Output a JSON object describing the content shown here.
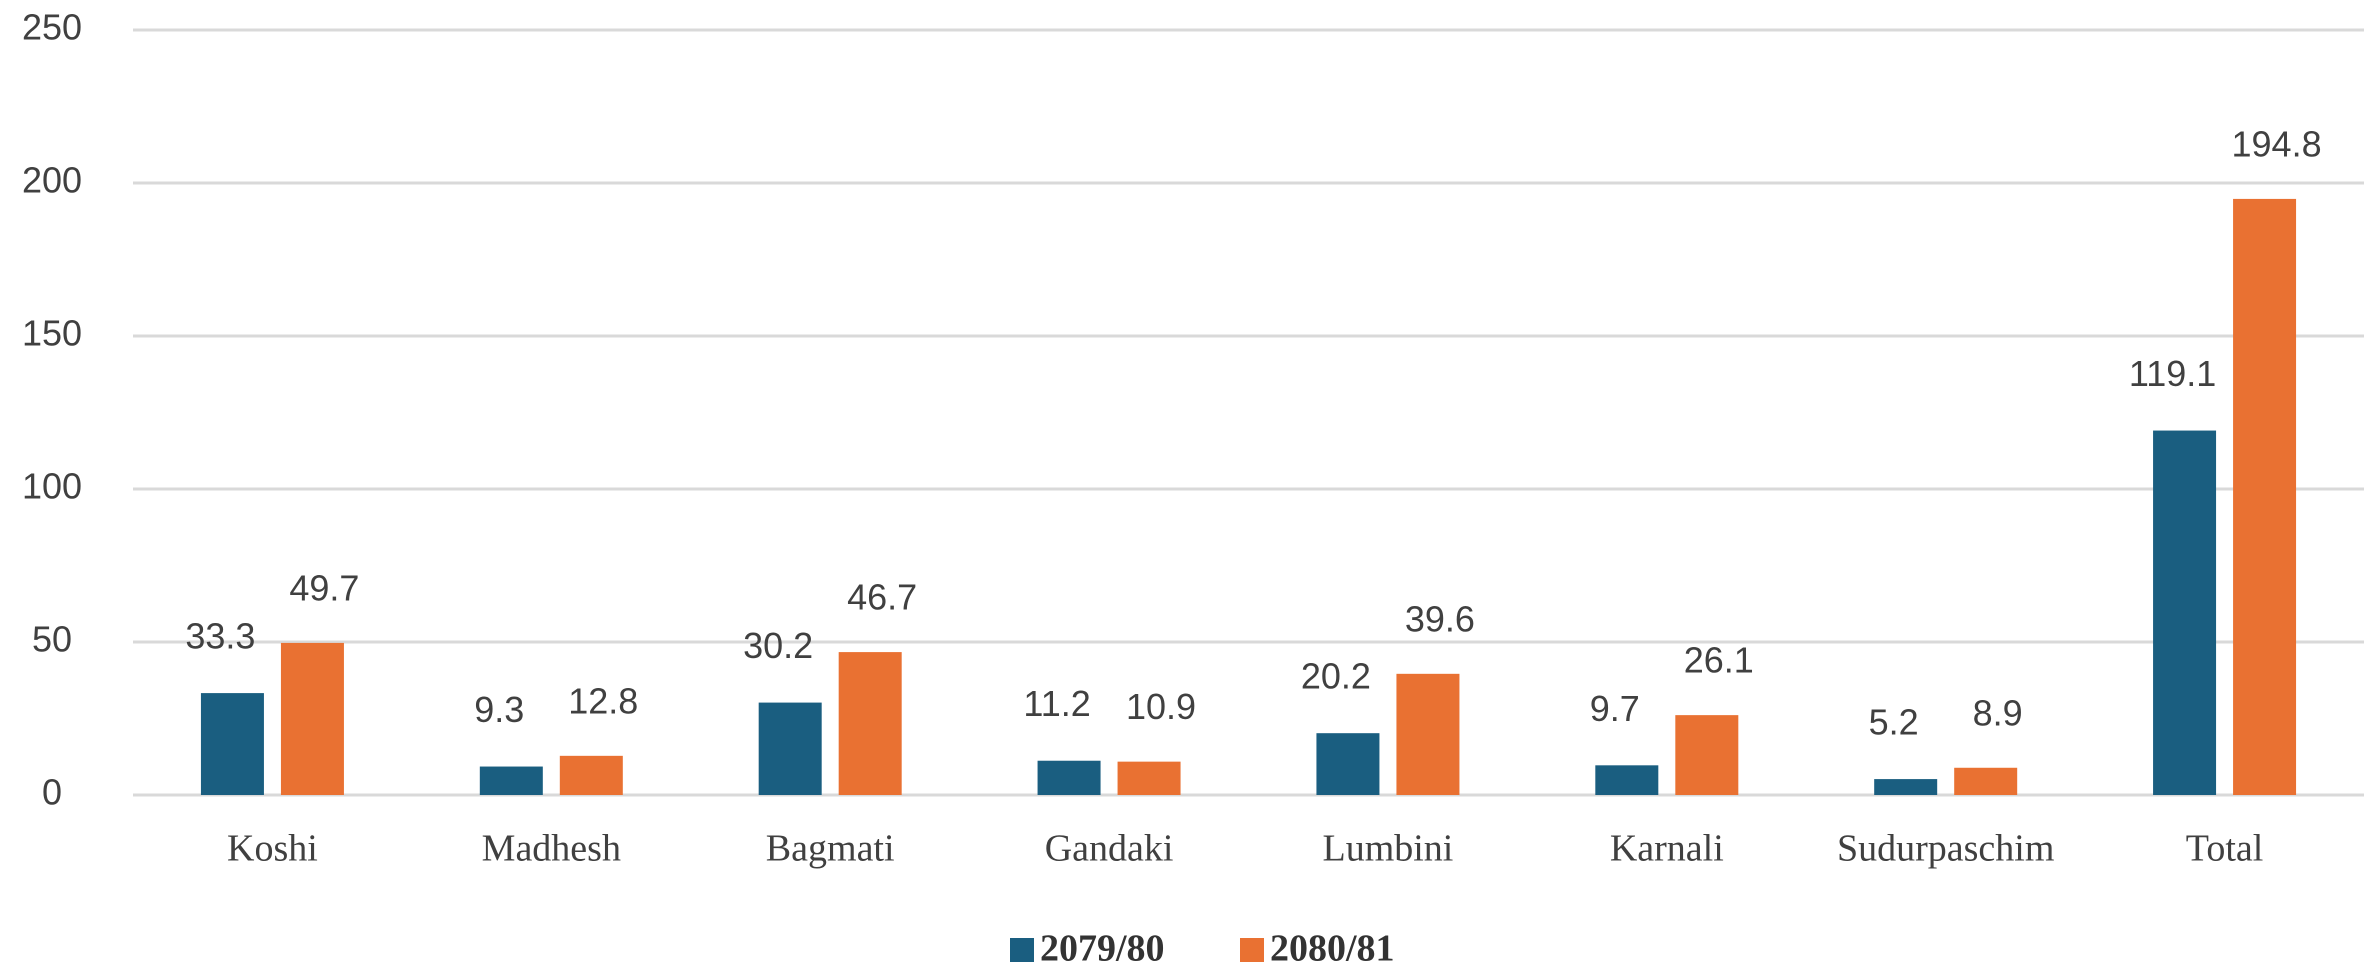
{
  "chart_data": {
    "type": "bar",
    "categories": [
      "Koshi",
      "Madhesh",
      "Bagmati",
      "Gandaki",
      "Lumbini",
      "Karnali",
      "Sudurpaschim",
      "Total"
    ],
    "series": [
      {
        "name": "2079/80",
        "color": "#1a5e80",
        "values": [
          33.3,
          9.3,
          30.2,
          11.2,
          20.2,
          9.7,
          5.2,
          119.1
        ]
      },
      {
        "name": "2080/81",
        "color": "#e97132",
        "values": [
          49.7,
          12.8,
          46.7,
          10.9,
          39.6,
          26.1,
          8.9,
          194.8
        ]
      }
    ],
    "ylim": [
      0,
      250
    ],
    "yticks": [
      0,
      50,
      100,
      150,
      200,
      250
    ],
    "grid": true,
    "legend": "bottom"
  }
}
